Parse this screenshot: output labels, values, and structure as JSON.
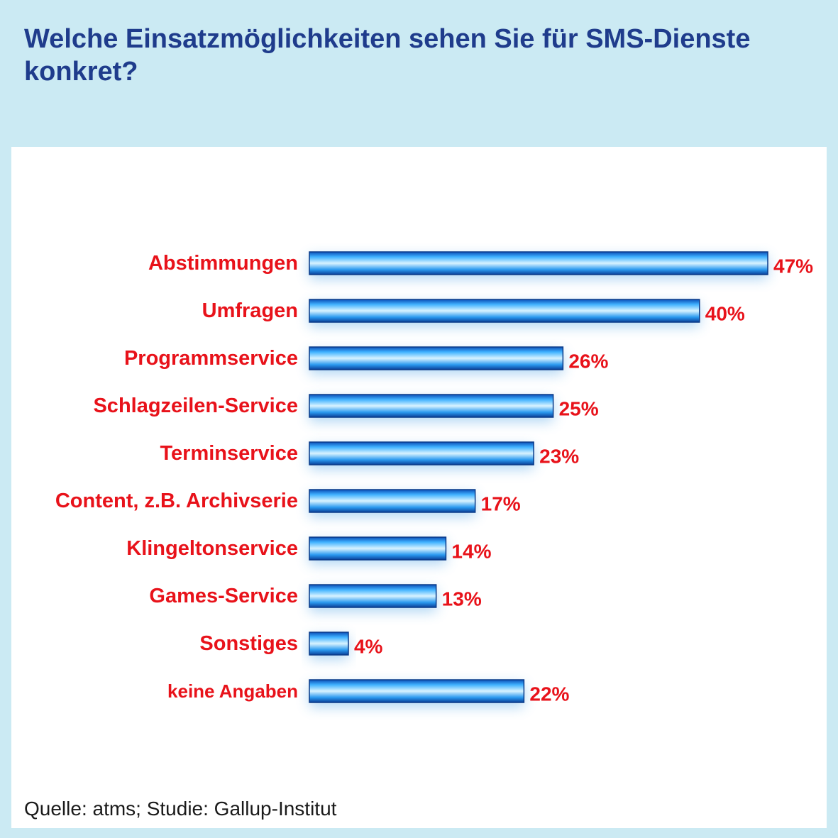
{
  "chart_data": {
    "type": "bar",
    "orientation": "horizontal",
    "title": "Welche Einsatzmöglichkeiten sehen Sie für SMS-Dienste konkret?",
    "categories": [
      "Abstimmungen",
      "Umfragen",
      "Programmservice",
      "Schlagzeilen-Service",
      "Terminservice",
      "Content, z.B. Archivserie",
      "Klingeltonservice",
      "Games-Service",
      "Sonstiges",
      "keine Angaben"
    ],
    "values": [
      47,
      40,
      26,
      25,
      23,
      17,
      14,
      13,
      4,
      22
    ],
    "value_labels": [
      "47%",
      "40%",
      "26%",
      "25%",
      "23%",
      "17%",
      "14%",
      "13%",
      "4%",
      "22%"
    ],
    "unit": "%",
    "xlim": [
      0,
      47
    ],
    "grid": false,
    "legend": "none",
    "colors": {
      "bar": "#1e8ee8",
      "label": "#e8121a",
      "title": "#1f3c8c",
      "background": "#cbeaf3"
    }
  },
  "source": "Quelle: atms; Studie: Gallup-Institut"
}
